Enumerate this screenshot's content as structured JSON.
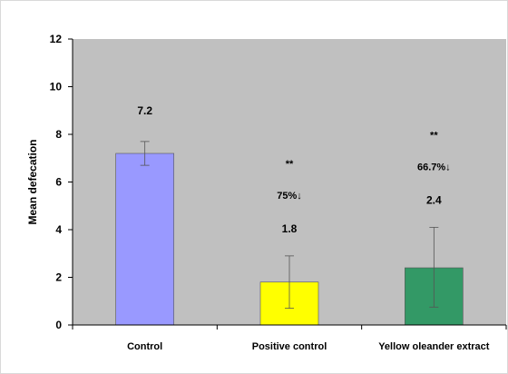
{
  "chart_data": {
    "type": "bar",
    "categories": [
      "Control",
      "Positive control",
      "Yellow oleander extract"
    ],
    "values": [
      7.2,
      1.8,
      2.4
    ],
    "error_low": [
      6.7,
      0.7,
      0.75
    ],
    "error_high": [
      7.7,
      2.9,
      4.1
    ],
    "bar_colors": [
      "#9999ff",
      "#ffff00",
      "#339966"
    ],
    "data_labels": [
      "7.2",
      "1.8",
      "2.4"
    ],
    "significance": [
      "",
      "**",
      "**"
    ],
    "percent_change": [
      "",
      "75%↓",
      "66.7%↓"
    ],
    "ylabel": "Mean defecation",
    "xlabel": "",
    "ylim": [
      0,
      12
    ],
    "yticks": [
      0,
      2,
      4,
      6,
      8,
      10,
      12
    ],
    "plot_background": "#c0c0c0",
    "grid": false,
    "legend": "none"
  }
}
